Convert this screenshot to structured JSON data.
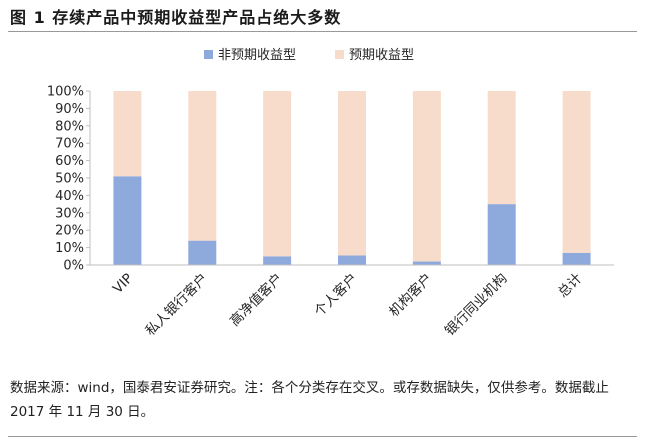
{
  "figure": {
    "title": "图 1  存续产品中预期收益型产品占绝大多数",
    "note": "数据来源：wind，国泰君安证券研究。注：各个分类存在交叉。或存数据缺失，仅供参考。数据截止 2017 年 11 月 30 日。"
  },
  "colors": {
    "non_expected": "#8eaadc",
    "expected": "#f8dccb",
    "axis": "#bfbfbf",
    "text": "#262626"
  },
  "chart_data": {
    "type": "bar",
    "stacked": true,
    "categories": [
      "VIP",
      "私人银行客户",
      "高净值客户",
      "个人客户",
      "机构客户",
      "银行同业机构",
      "总计"
    ],
    "series": [
      {
        "name": "非预期收益型",
        "color": "#8eaadc",
        "values": [
          51,
          14,
          5,
          5.5,
          2,
          35,
          7
        ]
      },
      {
        "name": "预期收益型",
        "color": "#f8dccb",
        "values": [
          49,
          86,
          95,
          94.5,
          98,
          65,
          93
        ]
      }
    ],
    "yticks": [
      "0%",
      "10%",
      "20%",
      "30%",
      "40%",
      "50%",
      "60%",
      "70%",
      "80%",
      "90%",
      "100%"
    ],
    "ylim": [
      0,
      100
    ],
    "legend_position": "top",
    "grid": false
  }
}
